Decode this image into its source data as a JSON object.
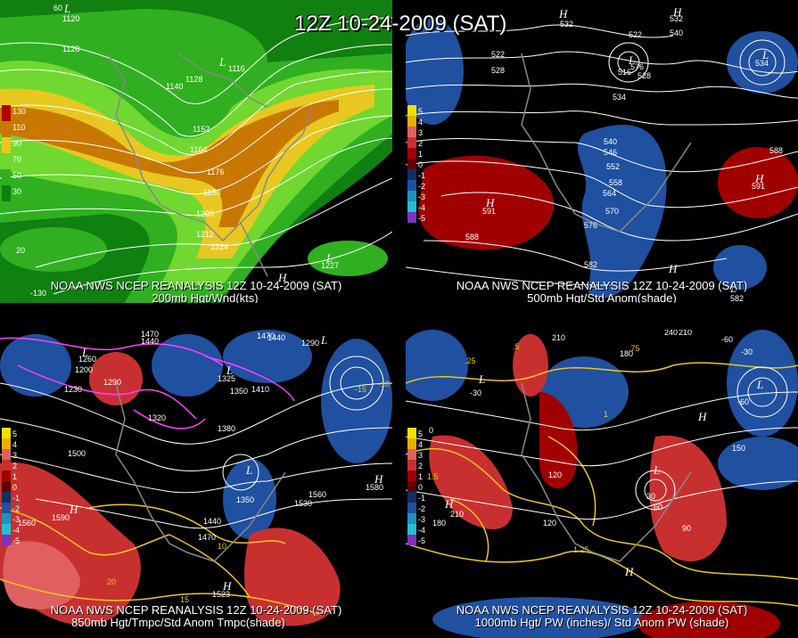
{
  "title": "12Z 10-24-2009 (SAT)",
  "panels": [
    {
      "id": "p200",
      "caption_line1": "NOAA NWS NCEP REANALYSIS 12Z 10-24-2009 (SAT)",
      "caption_line2": "200mb Hgt/Wnd(kts)",
      "legend": [
        {
          "label": "130",
          "color": "#b00000"
        },
        {
          "label": "110",
          "color": "#c87800"
        },
        {
          "label": "90",
          "color": "#e8c820"
        },
        {
          "label": "70",
          "color": "#70d830"
        },
        {
          "label": "50",
          "color": "#30b020"
        },
        {
          "label": "30",
          "color": "#108010"
        }
      ],
      "labels": [
        "1120",
        "1128",
        "1140",
        "1128",
        "1116",
        "1152",
        "1164",
        "1176",
        "1188",
        "1200",
        "1212",
        "1224",
        "1227",
        "60",
        "20",
        "-130"
      ]
    },
    {
      "id": "p500",
      "caption_line1": "NOAA NWS NCEP REANALYSIS 12Z 10-24-2009 (SAT)",
      "caption_line2": "500mb Hgt/Std Anom(shade)",
      "legend": [
        {
          "label": "5",
          "color": "#f0e000"
        },
        {
          "label": "4",
          "color": "#e8b000"
        },
        {
          "label": "3",
          "color": "#e06060"
        },
        {
          "label": "2",
          "color": "#c83030"
        },
        {
          "label": "1",
          "color": "#a00000"
        },
        {
          "label": "0",
          "color": "#600000"
        },
        {
          "label": "-1",
          "color": "#103060"
        },
        {
          "label": "-2",
          "color": "#2050a0"
        },
        {
          "label": "-3",
          "color": "#2090c0"
        },
        {
          "label": "-4",
          "color": "#20c0d0"
        },
        {
          "label": "-5",
          "color": "#8030c0"
        }
      ],
      "labels": [
        "522",
        "528",
        "522",
        "540",
        "534",
        "576",
        "516",
        "528",
        "534",
        "540",
        "546",
        "552",
        "558",
        "564",
        "570",
        "576",
        "582",
        "588",
        "588",
        "591",
        "591",
        "582",
        "532",
        "532"
      ]
    },
    {
      "id": "p850",
      "caption_line1": "NOAA NWS NCEP REANALYSIS 12Z 10-24-2009 (SAT)",
      "caption_line2": "850mb Hgt/Tmpc/Std Anom Tmpc(shade)",
      "legend": [
        {
          "label": "5",
          "color": "#f0e000"
        },
        {
          "label": "4",
          "color": "#e8b000"
        },
        {
          "label": "3",
          "color": "#e06060"
        },
        {
          "label": "2",
          "color": "#c83030"
        },
        {
          "label": "1",
          "color": "#a00000"
        },
        {
          "label": "0",
          "color": "#600000"
        },
        {
          "label": "-1",
          "color": "#103060"
        },
        {
          "label": "-2",
          "color": "#2050a0"
        },
        {
          "label": "-3",
          "color": "#2090c0"
        },
        {
          "label": "-4",
          "color": "#20c0d0"
        },
        {
          "label": "-5",
          "color": "#8030c0"
        }
      ],
      "labels": [
        "1470",
        "1440",
        "1470",
        "1440",
        "1290",
        "1260",
        "1230",
        "1200",
        "1290",
        "1325",
        "1350",
        "1410",
        "1320",
        "1380",
        "1500",
        "1560",
        "1590",
        "1440",
        "1470",
        "1560",
        "1530",
        "1350",
        "1580",
        "1523",
        "10",
        "15",
        "20",
        "-10",
        "-15"
      ]
    },
    {
      "id": "p1000",
      "caption_line1": "NOAA NWS NCEP REANALYSIS 12Z 10-24-2009 (SAT)",
      "caption_line2": "1000mb Hgt/ PW (inches)/ Std Anom PW (shade)",
      "legend": [
        {
          "label": "5",
          "color": "#f0e000"
        },
        {
          "label": "4",
          "color": "#e8b000"
        },
        {
          "label": "3",
          "color": "#e06060"
        },
        {
          "label": "2",
          "color": "#c83030"
        },
        {
          "label": "1",
          "color": "#a00000"
        },
        {
          "label": "0",
          "color": "#600000"
        },
        {
          "label": "-1",
          "color": "#103060"
        },
        {
          "label": "-2",
          "color": "#2050a0"
        },
        {
          "label": "-3",
          "color": "#2090c0"
        },
        {
          "label": "-4",
          "color": "#20c0d0"
        },
        {
          "label": "-5",
          "color": "#8030c0"
        }
      ],
      "labels": [
        "210",
        "180",
        "240",
        "210",
        "-60",
        "-30",
        ".25",
        ".5",
        ".75",
        "1",
        "1.5",
        "1.25",
        "30",
        "60",
        "90",
        "210",
        "180",
        "120",
        "150",
        "120",
        "-30",
        "-60",
        "0"
      ]
    }
  ]
}
